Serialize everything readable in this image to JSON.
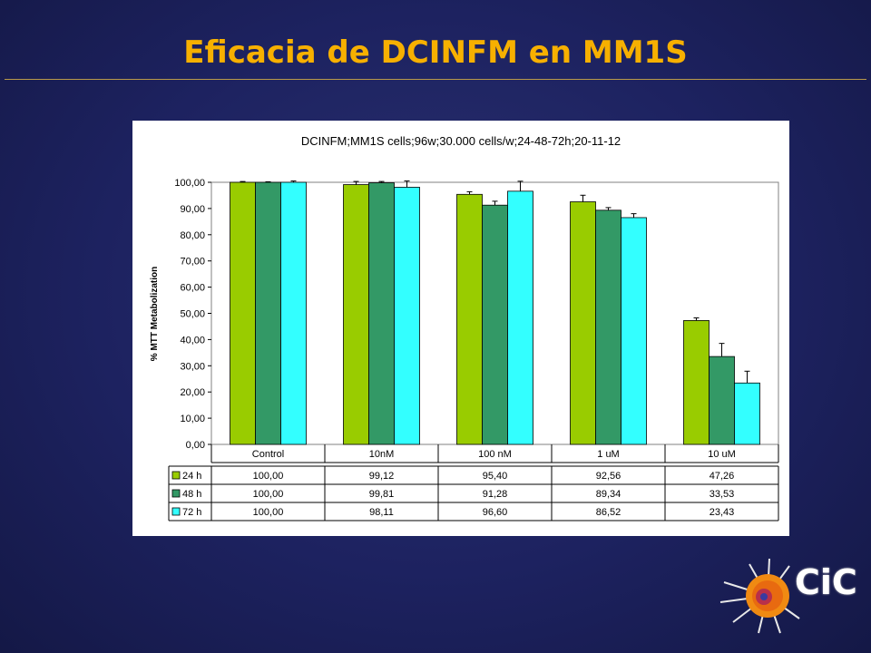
{
  "slide": {
    "title": "Eficacia de DCINFM en MM1S",
    "logo_text": "CiC"
  },
  "colors": {
    "background": "#1d2260",
    "title": "#f7b000"
  },
  "chart_data": {
    "type": "bar",
    "title": "DCINFM;MM1S cells;96w;30.000 cells/w;24-48-72h;20-11-12",
    "xlabel": "",
    "ylabel": "% MTT Metabolization",
    "ylim": [
      0,
      100
    ],
    "yticks": [
      "100,00",
      "90,00",
      "80,00",
      "70,00",
      "60,00",
      "50,00",
      "40,00",
      "30,00",
      "20,00",
      "10,00",
      "0,00"
    ],
    "grid": false,
    "legend": "data-table",
    "categories": [
      "Control",
      "10nM",
      "100 nM",
      "1 uM",
      "10 uM"
    ],
    "series": [
      {
        "name": "24 h",
        "color": "#99cc00",
        "values": [
          100.0,
          99.12,
          95.4,
          92.56,
          47.26
        ],
        "labels": [
          "100,00",
          "99,12",
          "95,40",
          "92,56",
          "47,26"
        ],
        "errors": [
          0.3,
          1.2,
          1.0,
          2.5,
          1.0
        ]
      },
      {
        "name": "48 h",
        "color": "#339966",
        "values": [
          100.0,
          99.81,
          91.28,
          89.34,
          33.53
        ],
        "labels": [
          "100,00",
          "99,81",
          "91,28",
          "89,34",
          "33,53"
        ],
        "errors": [
          0.2,
          0.5,
          1.5,
          1.0,
          5.0
        ]
      },
      {
        "name": "72 h",
        "color": "#33ffff",
        "values": [
          100.0,
          98.11,
          96.6,
          86.52,
          23.43
        ],
        "labels": [
          "100,00",
          "98,11",
          "96,60",
          "86,52",
          "23,43"
        ],
        "errors": [
          0.6,
          2.5,
          3.8,
          1.5,
          4.5
        ]
      }
    ]
  }
}
